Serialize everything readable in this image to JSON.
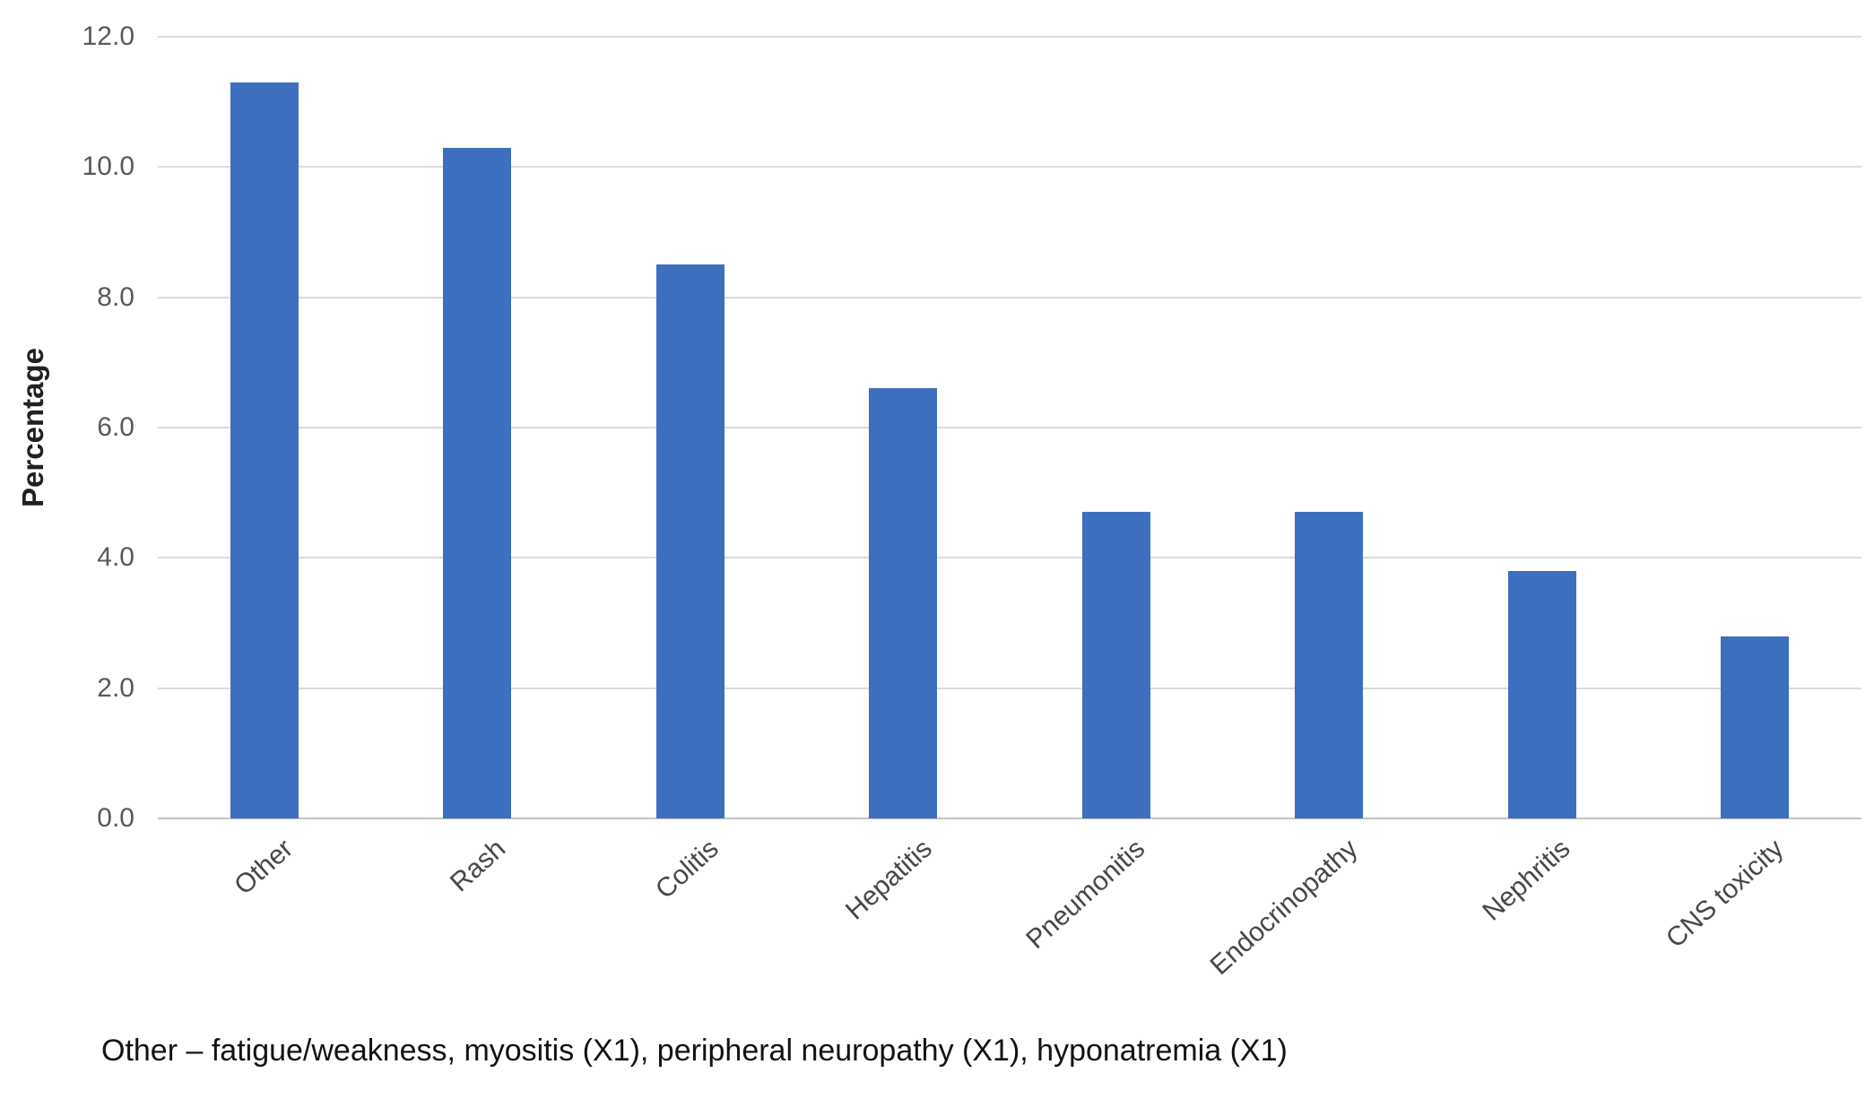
{
  "chart_data": {
    "type": "bar",
    "title": "",
    "categories": [
      "Other",
      "Rash",
      "Colitis",
      "Hepatitis",
      "Pneumonitis",
      "Endocrinopathy",
      "Nephritis",
      "CNS toxicity"
    ],
    "values": [
      11.3,
      10.3,
      8.5,
      6.6,
      4.7,
      4.7,
      3.8,
      2.8
    ],
    "xlabel": "",
    "ylabel": "Percentage",
    "ylim": [
      0,
      12
    ],
    "y_ticks": [
      {
        "label": "12.0",
        "value": 12
      },
      {
        "label": "10.0",
        "value": 10
      },
      {
        "label": "8.0",
        "value": 8
      },
      {
        "label": "6.0",
        "value": 6
      },
      {
        "label": "4.0",
        "value": 4
      },
      {
        "label": "2.0",
        "value": 2
      },
      {
        "label": "0.0",
        "value": 0
      }
    ],
    "grid": "horizontal-only",
    "legend_position": "none",
    "bar_color": "#3e6fbf",
    "footnote": "Other – fatigue/weakness, myositis (X1), peripheral neuropathy (X1), hyponatremia (X1)"
  },
  "colors": {
    "bar_fill": "#3e6fbf",
    "gridline": "#dcdcdc",
    "axis_line": "#c3c3c3",
    "tick_label": "#595959",
    "category_label": "#474747",
    "axis_title": "#212121",
    "footnote": "#121212",
    "background": "#ffffff"
  }
}
